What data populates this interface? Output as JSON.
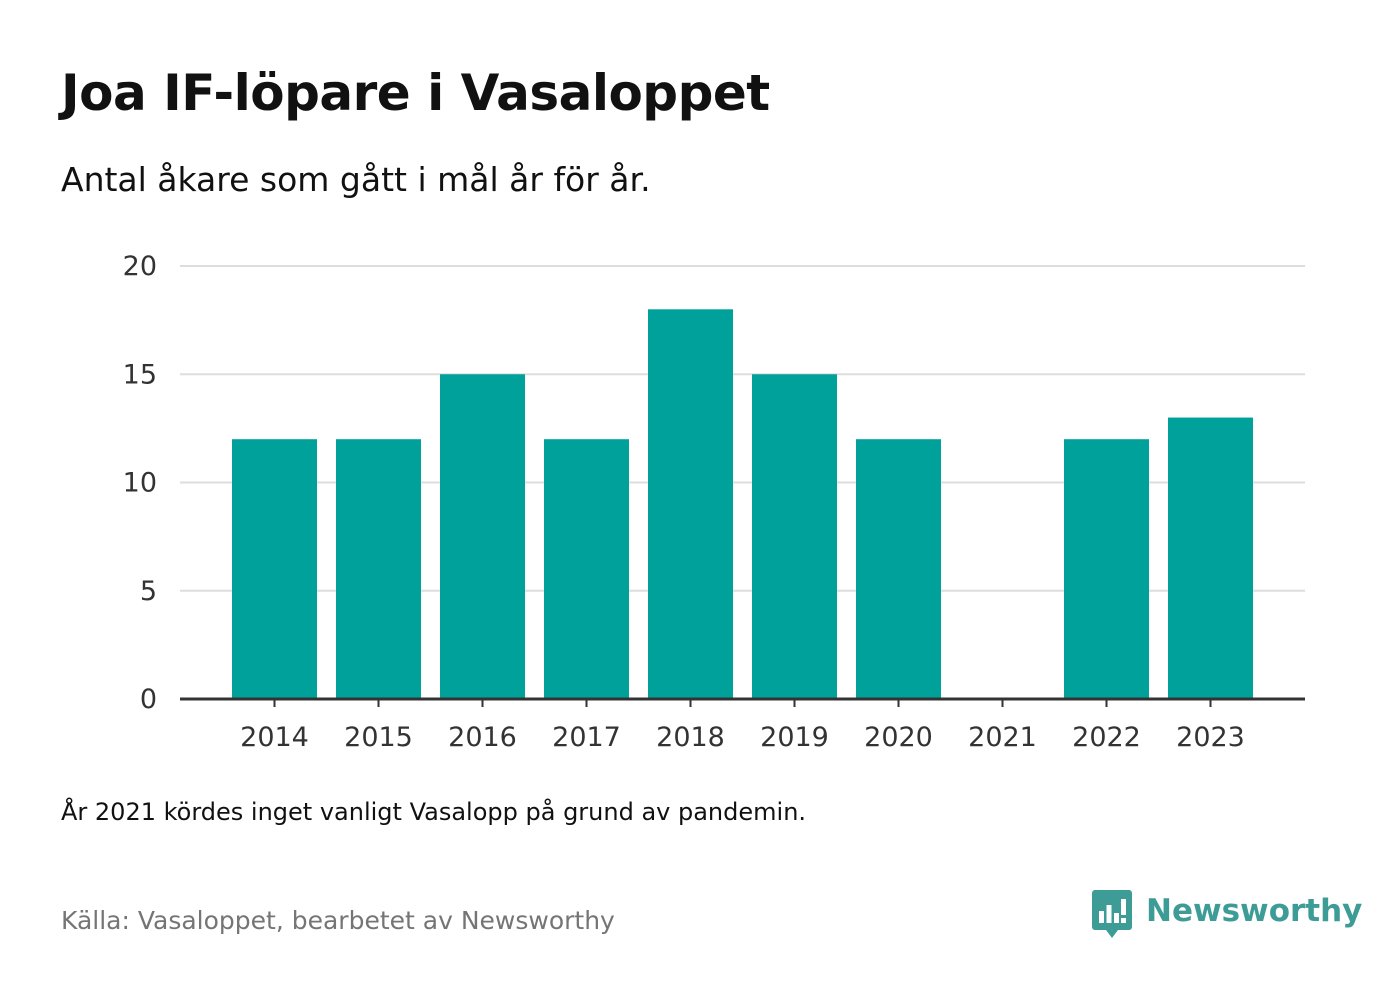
{
  "title": "Joa IF-löpare i Vasaloppet",
  "subtitle": "Antal åkare som gått i mål år för år.",
  "note": "År 2021 kördes inget vanligt Vasalopp på grund av pandemin.",
  "source": "Källa: Vasaloppet, bearbetet av Newsworthy",
  "brand": {
    "name": "Newsworthy",
    "icon": "newsworthy-logo-icon",
    "color": "#3e9c96"
  },
  "colors": {
    "bar": "#00a19a",
    "grid": "#dddddd",
    "axis": "#333333"
  },
  "chart_data": {
    "type": "bar",
    "categories": [
      "2014",
      "2015",
      "2016",
      "2017",
      "2018",
      "2019",
      "2020",
      "2021",
      "2022",
      "2023"
    ],
    "values": [
      12,
      12,
      15,
      12,
      18,
      15,
      12,
      null,
      12,
      13
    ],
    "title": "Joa IF-löpare i Vasaloppet",
    "subtitle": "Antal åkare som gått i mål år för år.",
    "xlabel": "",
    "ylabel": "",
    "ylim": [
      0,
      20
    ],
    "yticks": [
      0,
      5,
      10,
      15,
      20
    ],
    "grid": true,
    "legend": "none"
  }
}
